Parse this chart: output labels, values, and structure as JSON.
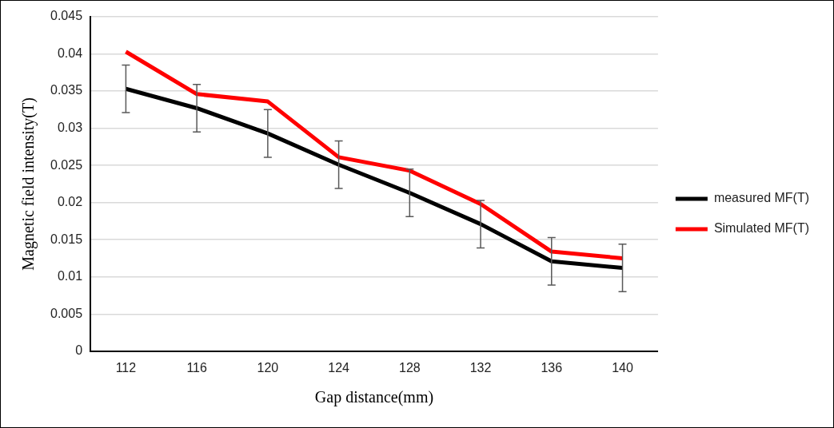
{
  "chart_data": {
    "type": "line",
    "xlabel": "Gap distance(mm)",
    "ylabel": "Magnetic field intensity(T)",
    "categories": [
      "112",
      "116",
      "120",
      "124",
      "128",
      "132",
      "136",
      "140"
    ],
    "series": [
      {
        "name": "measured MF(T)",
        "color": "#000000",
        "values": [
          0.0353,
          0.0327,
          0.0293,
          0.0251,
          0.0213,
          0.0171,
          0.0121,
          0.0112
        ],
        "errors": [
          0.0032,
          0.0032,
          0.0032,
          0.0032,
          0.0032,
          0.0032,
          0.0032,
          0.0032
        ]
      },
      {
        "name": "Simulated MF(T)",
        "color": "#ff0000",
        "values": [
          0.0403,
          0.0346,
          0.0336,
          0.0261,
          0.0243,
          0.0198,
          0.0134,
          0.0125
        ]
      }
    ],
    "ylim": [
      0,
      0.045
    ],
    "yticks": [
      0,
      0.005,
      0.01,
      0.015,
      0.02,
      0.025,
      0.03,
      0.035,
      0.04,
      0.045
    ],
    "grid": "y",
    "legend": "right",
    "marker": "none",
    "line_style": "solid"
  }
}
